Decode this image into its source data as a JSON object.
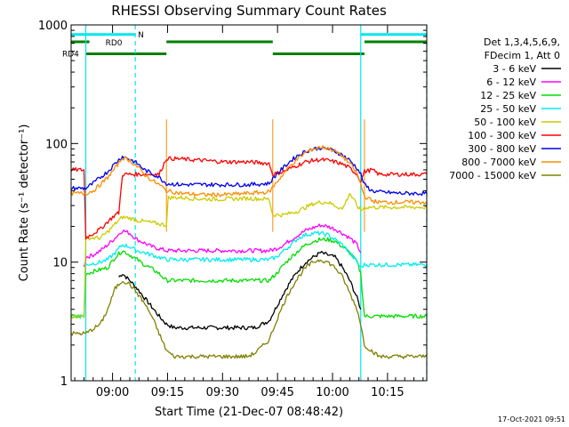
{
  "chart_data": {
    "type": "line",
    "title": "RHESSI Observing Summary Count Rates",
    "xlabel": "Start Time (21-Dec-07 08:48:42)",
    "ylabel": "Count Rate (s⁻¹ detector⁻¹)",
    "yscale": "log",
    "ylim": [
      1,
      1000
    ],
    "xlim_minutes": [
      0,
      97
    ],
    "x_unit": "minutes after 08:48:42",
    "y_tick_labels": [
      "1",
      "10",
      "100",
      "1000"
    ],
    "x_tick_labels": [
      "09:00",
      "09:15",
      "09:30",
      "09:45",
      "10:00",
      "10:15"
    ],
    "x_ticks_minutes": [
      11.3,
      26.3,
      41.3,
      56.3,
      71.3,
      86.3
    ],
    "legend_header": [
      "Det 1,3,4,5,6,9,",
      "FDecim 1, Att 0"
    ],
    "legend_position": "right",
    "footer": "17-Oct-2021 09:51",
    "flags": [
      {
        "label": "N",
        "color": "#00e5ee",
        "segments": [
          [
            0,
            17.5
          ],
          [
            79,
            97
          ]
        ],
        "y": 830
      },
      {
        "label": "RD0",
        "color": "#008000",
        "segments": [
          [
            0,
            5
          ],
          [
            26,
            55
          ],
          [
            80,
            97
          ]
        ],
        "y": 720
      },
      {
        "label": "RD4",
        "color": "#008000",
        "segments": [
          [
            4,
            26
          ],
          [
            55,
            80
          ]
        ],
        "y": 570
      }
    ],
    "vlines_cyan_solid": [
      4,
      79
    ],
    "vlines_cyan_dashed": [
      17.5,
      97
    ],
    "vlines_saa": [
      26,
      55,
      80
    ],
    "series": [
      {
        "name": "3 - 6 keV",
        "color": "#000000",
        "x": [
          13,
          14,
          16,
          18,
          20,
          22,
          24,
          26,
          28,
          30,
          34,
          40,
          46,
          50,
          54,
          56,
          58,
          60,
          62,
          64,
          66,
          68,
          70,
          72,
          74,
          76,
          78,
          79
        ],
        "y": [
          7.5,
          8,
          7,
          6,
          5,
          4.2,
          3.5,
          3,
          2.8,
          2.8,
          2.8,
          2.8,
          2.8,
          2.8,
          3.2,
          4.2,
          5.5,
          7,
          8.5,
          10,
          11,
          12,
          11.5,
          11,
          9,
          7,
          5,
          4
        ]
      },
      {
        "name": "6 - 12 keV",
        "color": "#ff00ff",
        "x": [
          3.5,
          4,
          6,
          8,
          10,
          12,
          14,
          16,
          18,
          20,
          22,
          24,
          26,
          30,
          36,
          42,
          48,
          54,
          56,
          58,
          60,
          62,
          64,
          66,
          68,
          70,
          72,
          74,
          76,
          78,
          79
        ],
        "y": [
          9,
          11,
          11.5,
          12.5,
          14,
          16,
          18.5,
          17.5,
          15.5,
          14.5,
          13.5,
          13,
          12.5,
          12.5,
          12.5,
          12.5,
          12.5,
          12.5,
          13,
          14,
          15.5,
          17,
          18.5,
          19.5,
          20.5,
          20,
          19,
          17.5,
          16,
          14,
          12
        ]
      },
      {
        "name": "12 - 25 keV",
        "color": "#00dd00",
        "x": [
          0,
          3.5,
          4,
          10,
          12,
          14,
          16,
          18,
          20,
          22,
          24,
          26,
          30,
          36,
          42,
          48,
          54,
          56,
          58,
          60,
          62,
          64,
          66,
          68,
          70,
          72,
          74,
          76,
          78,
          79,
          80,
          97
        ],
        "y": [
          3.5,
          3.5,
          8,
          9,
          11,
          12.5,
          11.5,
          10.5,
          9.5,
          8.8,
          8,
          7,
          7,
          7,
          7,
          7,
          7,
          8,
          9.5,
          11,
          12.5,
          14,
          15,
          15.5,
          15.5,
          15,
          13.5,
          12,
          10,
          8,
          3.5,
          3.5
        ]
      },
      {
        "name": "25 - 50 keV",
        "color": "#00eeee",
        "x": [
          0,
          3.5,
          4,
          8,
          10,
          12,
          14,
          16,
          18,
          20,
          22,
          24,
          26,
          30,
          36,
          42,
          48,
          54,
          56,
          58,
          60,
          62,
          64,
          66,
          68,
          70,
          72,
          74,
          76,
          78,
          79,
          80,
          84,
          90,
          97
        ],
        "y": [
          3.5,
          3.5,
          9.5,
          10,
          10.5,
          12,
          14,
          13.5,
          12.5,
          12,
          11.5,
          11,
          10.5,
          10.5,
          10.5,
          10.5,
          10.5,
          10.5,
          11,
          12.5,
          14,
          16,
          17,
          17.5,
          17.5,
          17,
          15.5,
          14,
          12,
          10,
          9,
          9.5,
          9.5,
          9.5,
          9.5
        ]
      },
      {
        "name": "50 - 100 keV",
        "color": "#cccc00",
        "x": [
          0,
          3.5,
          4,
          8,
          10,
          12,
          14,
          16,
          18,
          20,
          22,
          24,
          26,
          26.5,
          30,
          36,
          42,
          48,
          54,
          55,
          56,
          58,
          60,
          62,
          64,
          66,
          68,
          70,
          72,
          74,
          76,
          78,
          79,
          80,
          84,
          90,
          97
        ],
        "y": [
          3.5,
          3.5,
          16,
          16,
          18,
          21,
          24,
          23.5,
          22.5,
          22,
          21.5,
          21,
          20.5,
          35,
          35,
          34,
          34,
          34.5,
          34,
          25,
          25,
          25,
          26,
          27,
          29,
          31,
          32,
          32,
          30,
          28,
          38,
          30,
          27,
          29,
          29,
          29,
          29
        ]
      },
      {
        "name": "100 - 300 keV",
        "color": "#ff0000",
        "x": [
          0,
          3.5,
          4,
          8,
          10,
          12,
          13,
          14,
          16,
          18,
          20,
          22,
          24,
          26,
          30,
          36,
          42,
          48,
          54,
          55,
          58,
          60,
          62,
          64,
          66,
          68,
          70,
          72,
          74,
          76,
          78,
          79,
          80,
          82,
          84,
          90,
          97
        ],
        "y": [
          60,
          60,
          16,
          19,
          22,
          25,
          26,
          55,
          55,
          55,
          55,
          55,
          55,
          75,
          74,
          72,
          70,
          70,
          68,
          55,
          58,
          62,
          66,
          70,
          72,
          73,
          72,
          70,
          67,
          62,
          55,
          48,
          58,
          60,
          55,
          55,
          55
        ]
      },
      {
        "name": "300 - 800 keV",
        "color": "#0000ee",
        "x": [
          0,
          4,
          6,
          8,
          10,
          12,
          14,
          16,
          18,
          20,
          22,
          24,
          26,
          30,
          36,
          42,
          48,
          54,
          56,
          58,
          60,
          62,
          64,
          66,
          68,
          70,
          72,
          74,
          76,
          78,
          79,
          80,
          82,
          84,
          90,
          97
        ],
        "y": [
          42,
          42,
          46,
          52,
          58,
          68,
          78,
          74,
          68,
          60,
          56,
          52,
          46,
          45,
          45,
          45,
          45,
          46,
          55,
          63,
          72,
          80,
          86,
          90,
          92,
          90,
          86,
          80,
          72,
          62,
          55,
          45,
          40,
          39,
          38,
          38
        ]
      },
      {
        "name": "800 - 7000 keV",
        "color": "#ff8c00",
        "x": [
          0,
          4,
          6,
          8,
          10,
          12,
          14,
          16,
          18,
          20,
          22,
          24,
          26,
          30,
          36,
          42,
          48,
          54,
          56,
          58,
          60,
          62,
          64,
          66,
          68,
          70,
          72,
          74,
          76,
          78,
          79,
          80,
          82,
          84,
          90,
          97
        ],
        "y": [
          38,
          38,
          40,
          45,
          52,
          62,
          76,
          72,
          64,
          55,
          49,
          45,
          40,
          38,
          37,
          37,
          38,
          39,
          47,
          56,
          66,
          75,
          84,
          90,
          93,
          92,
          86,
          78,
          68,
          56,
          45,
          36,
          33,
          32,
          32,
          32
        ]
      },
      {
        "name": "7000 - 15000 keV",
        "color": "#808000",
        "x": [
          0,
          3,
          4,
          8,
          10,
          12,
          14,
          16,
          18,
          20,
          22,
          24,
          26,
          28,
          30,
          36,
          42,
          48,
          50,
          54,
          56,
          58,
          60,
          62,
          64,
          66,
          68,
          70,
          72,
          74,
          76,
          78,
          79,
          80,
          84,
          90,
          97
        ],
        "y": [
          2.5,
          2.5,
          2.5,
          3,
          4,
          6,
          7,
          6.5,
          5.5,
          4.5,
          3.5,
          2.5,
          1.8,
          1.6,
          1.6,
          1.6,
          1.6,
          1.6,
          1.7,
          2.2,
          3.2,
          4.5,
          6,
          7.5,
          9,
          10,
          10.5,
          10,
          9,
          7.5,
          5.5,
          4,
          3,
          2,
          1.6,
          1.6,
          1.6
        ]
      }
    ]
  }
}
